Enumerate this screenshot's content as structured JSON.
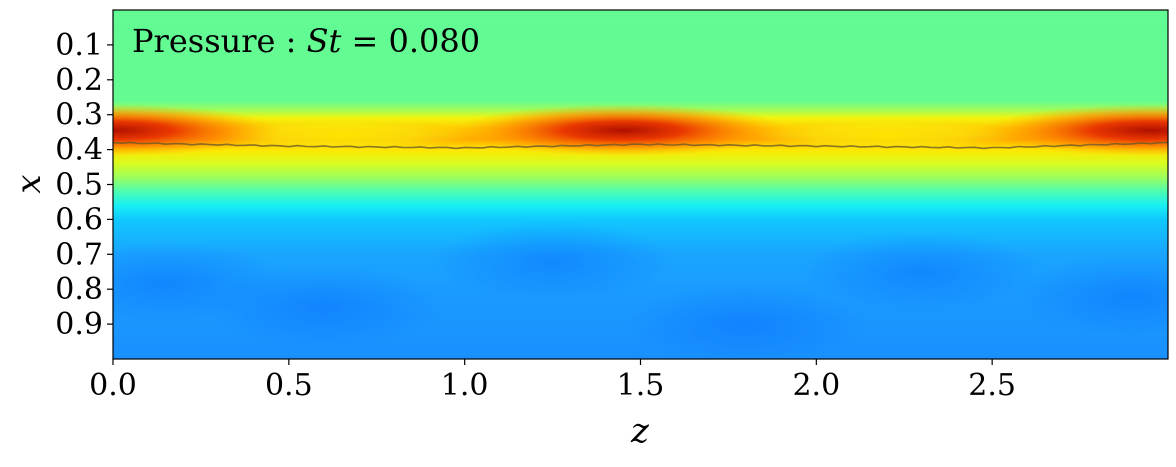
{
  "chart_data": {
    "type": "heatmap",
    "title": "Pressure : St = 0.080",
    "title_parts": {
      "label": "Pressure : ",
      "var": "St",
      "rest": " = 0.080"
    },
    "xlabel": "z",
    "ylabel": "x",
    "xlim": [
      0.0,
      3.0
    ],
    "ylim": [
      1.0,
      0.0
    ],
    "y_inverted": true,
    "grid": false,
    "colormap": "jet",
    "xticks": [
      0.0,
      0.5,
      1.0,
      1.5,
      2.0,
      2.5
    ],
    "xtick_labels": [
      "0.0",
      "0.5",
      "1.0",
      "1.5",
      "2.0",
      "2.5"
    ],
    "yticks": [
      0.1,
      0.2,
      0.3,
      0.4,
      0.5,
      0.6,
      0.7,
      0.8,
      0.9
    ],
    "ytick_labels": [
      "0.1",
      "0.2",
      "0.3",
      "0.4",
      "0.5",
      "0.6",
      "0.7",
      "0.8",
      "0.9"
    ],
    "field_description": {
      "x_profile_at_z": [
        {
          "x": 0.0,
          "level": 0.62
        },
        {
          "x": 0.27,
          "level": 0.64
        },
        {
          "x": 0.31,
          "level": 0.78
        },
        {
          "x": 0.34,
          "level": 0.88
        },
        {
          "x": 0.38,
          "level": 0.82
        },
        {
          "x": 0.43,
          "level": 0.7
        },
        {
          "x": 0.5,
          "level": 0.56
        },
        {
          "x": 0.55,
          "level": 0.42
        },
        {
          "x": 0.6,
          "level": 0.34
        },
        {
          "x": 0.7,
          "level": 0.28
        },
        {
          "x": 0.85,
          "level": 0.25
        },
        {
          "x": 1.0,
          "level": 0.24
        }
      ],
      "peak_z_locations": [
        0.0,
        1.45,
        2.95
      ],
      "trough_z_locations": [
        0.65,
        2.2
      ],
      "interface_line": {
        "z": [
          0.0,
          0.5,
          1.0,
          1.5,
          2.0,
          2.5,
          3.0
        ],
        "x": [
          0.38,
          0.39,
          0.395,
          0.385,
          0.39,
          0.395,
          0.38
        ]
      }
    }
  }
}
